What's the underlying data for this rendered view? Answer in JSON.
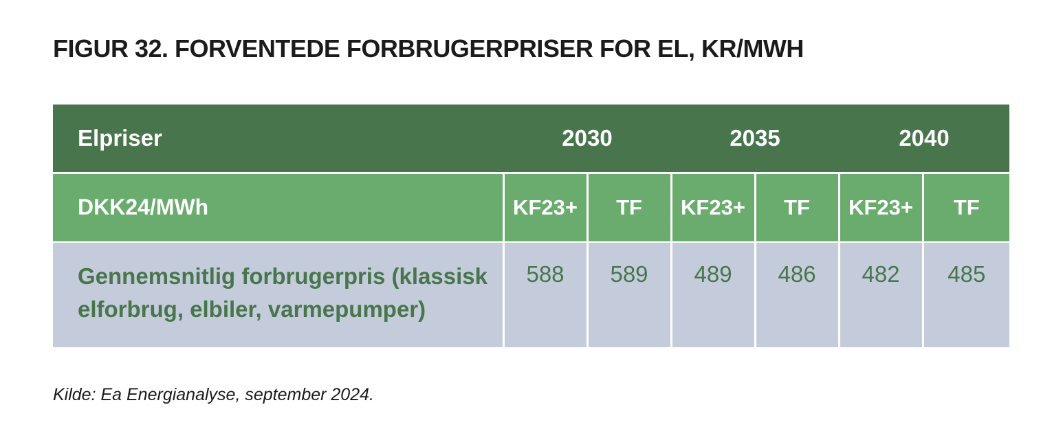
{
  "title": "FIGUR 32. FORVENTEDE FORBRUGERPRISER FOR EL, KR/MWH",
  "source": "Kilde: Ea Energianalyse, september 2024.",
  "colors": {
    "header_dark_green": "#48754b",
    "header_light_green": "#6aab6e",
    "data_row_bg": "#c4ccdc",
    "data_text": "#48754b"
  },
  "chart_data": {
    "type": "table",
    "header": {
      "label": "Elpriser",
      "years": [
        "2030",
        "2035",
        "2040"
      ]
    },
    "subheader": {
      "label": "DKK24/MWh",
      "columns": [
        "KF23+",
        "TF",
        "KF23+",
        "TF",
        "KF23+",
        "TF"
      ]
    },
    "rows": [
      {
        "label": "Gennemsnitlig forbrugerpris (klassisk elforbrug, elbiler, varmepumper)",
        "values": [
          "588",
          "589",
          "489",
          "486",
          "482",
          "485"
        ]
      }
    ]
  }
}
